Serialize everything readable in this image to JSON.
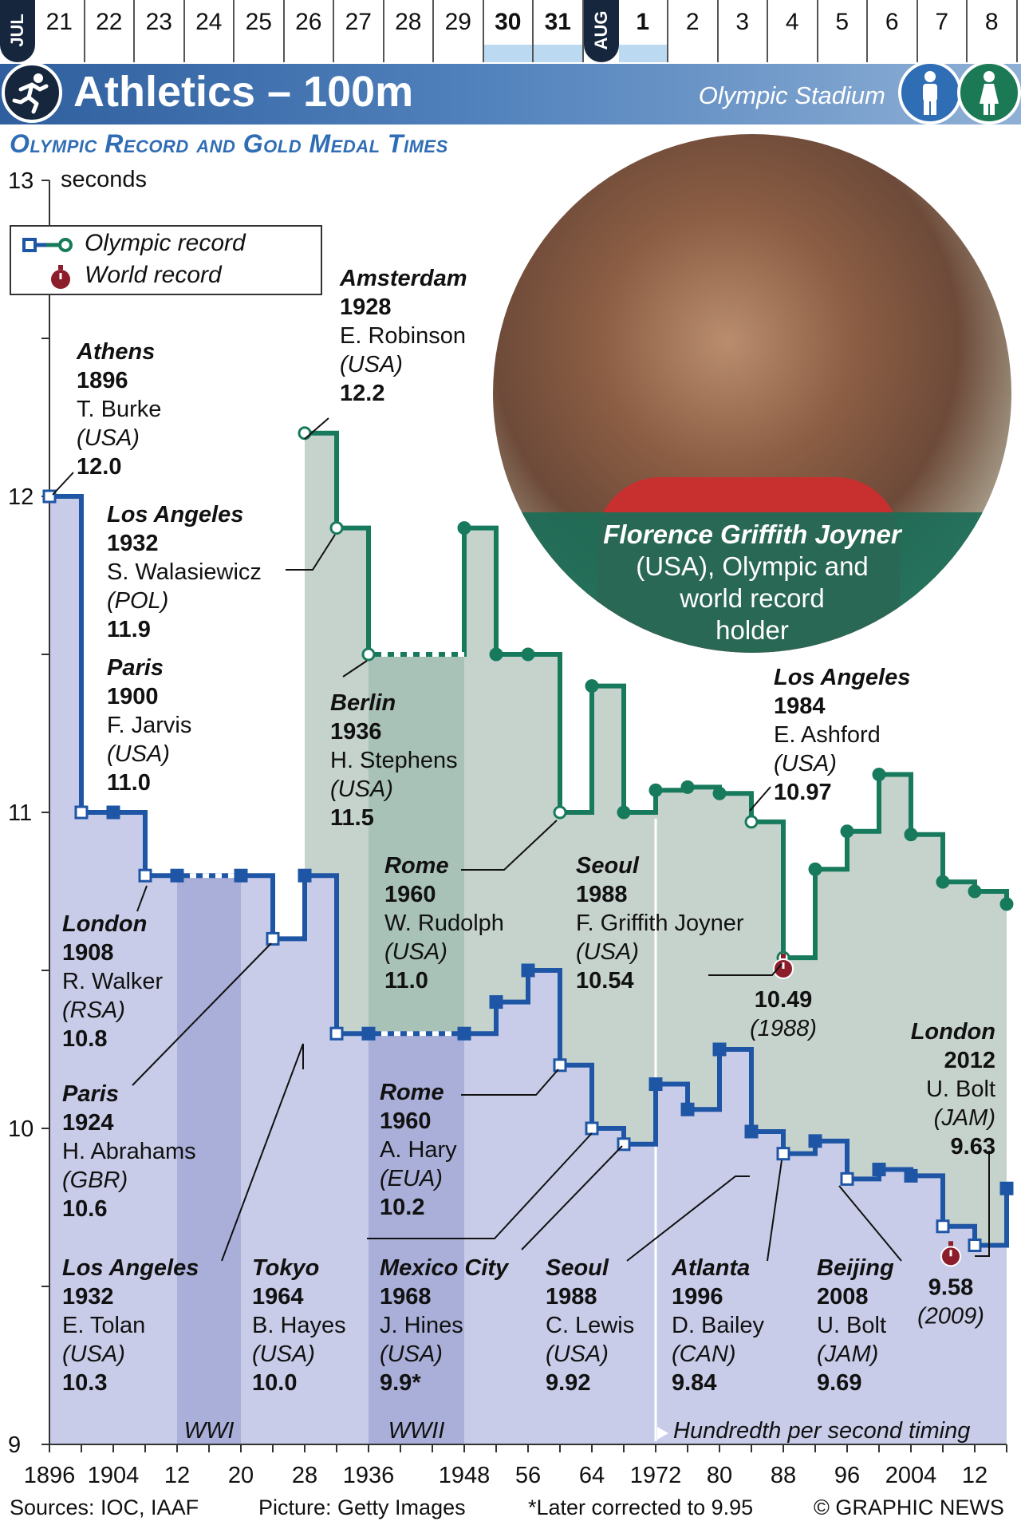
{
  "date_strip": {
    "month_jul": "JUL",
    "month_aug": "AUG",
    "jul_days": [
      "21",
      "22",
      "23",
      "24",
      "25",
      "26",
      "27",
      "28",
      "29",
      "30",
      "31"
    ],
    "aug_days": [
      "1",
      "2",
      "3",
      "4",
      "5",
      "6",
      "7",
      "8"
    ],
    "highlighted_days": [
      "30",
      "31",
      "1"
    ]
  },
  "header": {
    "title": "Athletics – 100m",
    "venue": "Olympic Stadium",
    "sport_icon": "sprinter-icon",
    "men_icon": "man-icon",
    "women_icon": "woman-icon",
    "colors": {
      "banner": "#3a6aa8",
      "men": "#2f6db5",
      "women": "#1b7a55"
    }
  },
  "subtitle": "Olympic Record and Gold Medal Times",
  "legend": {
    "olympic_record": "Olympic record",
    "world_record": "World record"
  },
  "photo": {
    "caption_name": "Florence Griffith Joyner",
    "caption_rest": [
      "(USA), Olympic and",
      "world record",
      "holder"
    ]
  },
  "chart_data": {
    "type": "line",
    "y_unit": "seconds",
    "ylim": [
      9,
      13
    ],
    "y_ticks": [
      "13",
      "12",
      "11",
      "10",
      "9"
    ],
    "x_tick_labels": [
      "1896",
      "1904",
      "12",
      "20",
      "28",
      "1936",
      "1948",
      "56",
      "64",
      "1972",
      "80",
      "88",
      "96",
      "2004",
      "12"
    ],
    "x_tick_years": [
      1896,
      1904,
      1912,
      1920,
      1928,
      1936,
      1948,
      1956,
      1964,
      1972,
      1980,
      1988,
      1996,
      2004,
      2012
    ],
    "series": [
      {
        "gender": "men",
        "color": "#1f55a5",
        "fill": "#c8cce8",
        "points": [
          [
            1896,
            12.0
          ],
          [
            1900,
            11.0
          ],
          [
            1904,
            11.0
          ],
          [
            1908,
            10.8
          ],
          [
            1912,
            10.8
          ],
          [
            1920,
            10.8
          ],
          [
            1924,
            10.6
          ],
          [
            1928,
            10.8
          ],
          [
            1932,
            10.3
          ],
          [
            1936,
            10.3
          ],
          [
            1948,
            10.3
          ],
          [
            1952,
            10.4
          ],
          [
            1956,
            10.5
          ],
          [
            1960,
            10.2
          ],
          [
            1964,
            10.0
          ],
          [
            1968,
            9.95
          ],
          [
            1972,
            10.14
          ],
          [
            1976,
            10.06
          ],
          [
            1980,
            10.25
          ],
          [
            1984,
            9.99
          ],
          [
            1988,
            9.92
          ],
          [
            1992,
            9.96
          ],
          [
            1996,
            9.84
          ],
          [
            2000,
            9.87
          ],
          [
            2004,
            9.85
          ],
          [
            2008,
            9.69
          ],
          [
            2012,
            9.63
          ],
          [
            2016,
            9.81
          ]
        ],
        "record_years": [
          1896,
          1900,
          1908,
          1924,
          1932,
          1960,
          1964,
          1968,
          1988,
          1996,
          2008,
          2012
        ],
        "no_games_years": [
          1916,
          1940,
          1944
        ]
      },
      {
        "gender": "women",
        "color": "#177a5c",
        "fill": "#c6d3cd",
        "points": [
          [
            1928,
            12.2
          ],
          [
            1932,
            11.9
          ],
          [
            1936,
            11.5
          ],
          [
            1948,
            11.9
          ],
          [
            1952,
            11.5
          ],
          [
            1956,
            11.5
          ],
          [
            1960,
            11.0
          ],
          [
            1964,
            11.4
          ],
          [
            1968,
            11.0
          ],
          [
            1972,
            11.07
          ],
          [
            1976,
            11.08
          ],
          [
            1980,
            11.06
          ],
          [
            1984,
            10.97
          ],
          [
            1988,
            10.54
          ],
          [
            1992,
            10.82
          ],
          [
            1996,
            10.94
          ],
          [
            2000,
            11.12
          ],
          [
            2004,
            10.93
          ],
          [
            2008,
            10.78
          ],
          [
            2012,
            10.75
          ],
          [
            2016,
            10.71
          ]
        ],
        "record_years": [
          1928,
          1932,
          1936,
          1960,
          1984,
          1988
        ],
        "no_games_years": [
          1940,
          1944
        ]
      }
    ],
    "world_records": [
      {
        "year": 1988,
        "value": 10.49,
        "label": "10.49",
        "sub": "(1988)"
      },
      {
        "year": 2009,
        "value": 9.58,
        "label": "9.58",
        "sub": "(2009)"
      }
    ],
    "war_bands": [
      {
        "label": "WWI",
        "from": 1912,
        "to": 1920
      },
      {
        "label": "WWII",
        "from": 1936,
        "to": 1948
      }
    ],
    "timing_note": {
      "year": 1972,
      "label": "Hundredth per second timing"
    }
  },
  "annotations": [
    {
      "city": "Athens",
      "year": "1896",
      "name": "T. Burke",
      "country": "(USA)",
      "time": "12.0"
    },
    {
      "city": "Paris",
      "year": "1900",
      "name": "F. Jarvis",
      "country": "(USA)",
      "time": "11.0"
    },
    {
      "city": "London",
      "year": "1908",
      "name": "R. Walker",
      "country": "(RSA)",
      "time": "10.8"
    },
    {
      "city": "Paris",
      "year": "1924",
      "name": "H. Abrahams",
      "country": "(GBR)",
      "time": "10.6"
    },
    {
      "city": "Los Angeles",
      "year": "1932",
      "name": "E. Tolan",
      "country": "(USA)",
      "time": "10.3"
    },
    {
      "city": "Tokyo",
      "year": "1964",
      "name": "B. Hayes",
      "country": "(USA)",
      "time": "10.0"
    },
    {
      "city": "Rome",
      "year": "1960",
      "name": "A. Hary",
      "country": "(EUA)",
      "time": "10.2"
    },
    {
      "city": "Mexico City",
      "year": "1968",
      "name": "J. Hines",
      "country": "(USA)",
      "time": "9.9*"
    },
    {
      "city": "Seoul",
      "year": "1988",
      "name": "C. Lewis",
      "country": "(USA)",
      "time": "9.92"
    },
    {
      "city": "Atlanta",
      "year": "1996",
      "name": "D. Bailey",
      "country": "(CAN)",
      "time": "9.84"
    },
    {
      "city": "Beijing",
      "year": "2008",
      "name": "U. Bolt",
      "country": "(JAM)",
      "time": "9.69"
    },
    {
      "city": "London",
      "year": "2012",
      "name": "U. Bolt",
      "country": "(JAM)",
      "time": "9.63"
    },
    {
      "city": "Amsterdam",
      "year": "1928",
      "name": "E. Robinson",
      "country": "(USA)",
      "time": "12.2"
    },
    {
      "city": "Los Angeles",
      "year": "1932",
      "name": "S. Walasiewicz",
      "country": "(POL)",
      "time": "11.9"
    },
    {
      "city": "Berlin",
      "year": "1936",
      "name": "H. Stephens",
      "country": "(USA)",
      "time": "11.5"
    },
    {
      "city": "Rome",
      "year": "1960",
      "name": "W. Rudolph",
      "country": "(USA)",
      "time": "11.0"
    },
    {
      "city": "Seoul",
      "year": "1988",
      "name": "F. Griffith Joyner",
      "country": "(USA)",
      "time": "10.54"
    },
    {
      "city": "Los Angeles",
      "year": "1984",
      "name": "E. Ashford",
      "country": "(USA)",
      "time": "10.97"
    }
  ],
  "footer": {
    "sources": "Sources: IOC, IAAF",
    "picture": "Picture: Getty Images",
    "note": "*Later corrected to 9.95",
    "credit": "© GRAPHIC NEWS"
  }
}
